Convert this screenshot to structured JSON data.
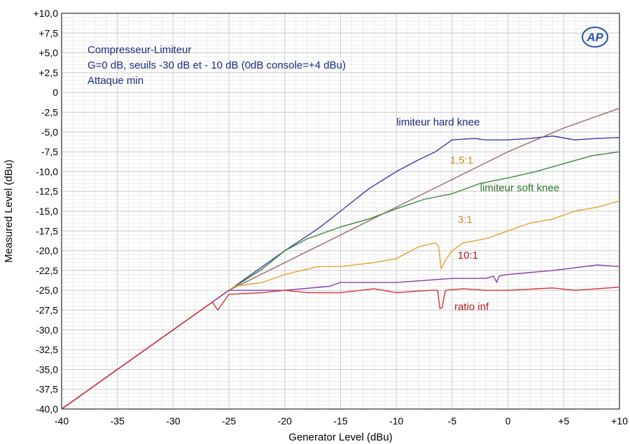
{
  "chart_data": {
    "type": "line",
    "title_lines": [
      "Compresseur-Limiteur",
      "G=0 dB, seuils -30 dB et - 10 dB (0dB console=+4 dBu)",
      "Attaque min"
    ],
    "title_color": "#1a2a7a",
    "xlabel": "Generator Level (dBu)",
    "ylabel": "Measured Level (dBu)",
    "xlim": [
      -40,
      10
    ],
    "ylim": [
      -40,
      10
    ],
    "x_ticks": [
      -40,
      -35,
      -30,
      -25,
      -20,
      -15,
      -10,
      -5,
      0,
      5,
      10
    ],
    "x_tick_labels": [
      "-40",
      "-35",
      "-30",
      "-25",
      "-20",
      "-15",
      "-10",
      "-5",
      "0",
      "+5",
      "+10"
    ],
    "y_ticks": [
      10,
      7.5,
      5,
      2.5,
      0,
      -2.5,
      -5,
      -7.5,
      -10,
      -12.5,
      -15,
      -17.5,
      -20,
      -22.5,
      -25,
      -27.5,
      -30,
      -32.5,
      -35,
      -37.5,
      -40
    ],
    "y_tick_labels": [
      "+10,0",
      "+7,5",
      "+5,0",
      "+2,5",
      "0",
      "-2,5",
      "-5,0",
      "-7,5",
      "-10,0",
      "-12,5",
      "-15,0",
      "-17,5",
      "-20,0",
      "-22,5",
      "-25,0",
      "-27,5",
      "-30,0",
      "-32,5",
      "-35,0",
      "-37,5",
      "-40,0"
    ],
    "x_minor_step": 1,
    "y_minor_step": 0.5,
    "grid": true,
    "logo": "AP",
    "series": [
      {
        "name": "limiteur hard knee",
        "color": "#3a3aaa",
        "label_at": [
          -10,
          -4.2
        ],
        "label_color": "#1a2a7a",
        "points": [
          [
            -40,
            -40
          ],
          [
            -27,
            -27
          ],
          [
            -25,
            -25
          ],
          [
            -20,
            -20
          ],
          [
            -17,
            -17.2
          ],
          [
            -15,
            -15
          ],
          [
            -12.5,
            -12.2
          ],
          [
            -10,
            -10
          ],
          [
            -8,
            -8.5
          ],
          [
            -6.5,
            -7.5
          ],
          [
            -5,
            -6
          ],
          [
            -3,
            -5.8
          ],
          [
            -2,
            -6
          ],
          [
            0,
            -6
          ],
          [
            2,
            -5.8
          ],
          [
            4,
            -5.5
          ],
          [
            6,
            -6
          ],
          [
            8,
            -5.8
          ],
          [
            10,
            -5.7
          ]
        ]
      },
      {
        "name": "1,5:1",
        "color": "#9a6a6a",
        "label_at": [
          -5.2,
          -9
        ],
        "label_color": "#d08a30",
        "points": [
          [
            -40,
            -40
          ],
          [
            -27,
            -27
          ],
          [
            -25,
            -25
          ],
          [
            -20,
            -21.5
          ],
          [
            -15,
            -18
          ],
          [
            -10,
            -14.5
          ],
          [
            -5,
            -11
          ],
          [
            0,
            -7.5
          ],
          [
            5,
            -4.5
          ],
          [
            10,
            -2
          ]
        ]
      },
      {
        "name": "limiteur soft knee",
        "color": "#3a8a3a",
        "label_at": [
          -2.5,
          -12.5
        ],
        "label_color": "#2a7a2a",
        "points": [
          [
            -40,
            -40
          ],
          [
            -27,
            -27
          ],
          [
            -25,
            -25
          ],
          [
            -22,
            -22.3
          ],
          [
            -20,
            -20
          ],
          [
            -18,
            -18.5
          ],
          [
            -15,
            -17
          ],
          [
            -12.5,
            -16
          ],
          [
            -10,
            -14.7
          ],
          [
            -7.5,
            -13.5
          ],
          [
            -5,
            -12.8
          ],
          [
            -2.5,
            -11.5
          ],
          [
            0,
            -10.8
          ],
          [
            2.5,
            -10
          ],
          [
            5,
            -9
          ],
          [
            7.5,
            -8
          ],
          [
            10,
            -7.5
          ]
        ]
      },
      {
        "name": "3:1",
        "color": "#e8a030",
        "label_at": [
          -4.5,
          -16.5
        ],
        "label_color": "#d08a30",
        "points": [
          [
            -40,
            -40
          ],
          [
            -27,
            -27
          ],
          [
            -25,
            -25
          ],
          [
            -24.5,
            -24.5
          ],
          [
            -22,
            -24
          ],
          [
            -20,
            -23
          ],
          [
            -17,
            -22
          ],
          [
            -15,
            -22
          ],
          [
            -12,
            -21.5
          ],
          [
            -10,
            -21
          ],
          [
            -8,
            -19.5
          ],
          [
            -6.5,
            -19
          ],
          [
            -6.2,
            -19.5
          ],
          [
            -6,
            -22.3
          ],
          [
            -5.5,
            -21
          ],
          [
            -5,
            -20
          ],
          [
            -4,
            -19
          ],
          [
            -2,
            -18.5
          ],
          [
            0,
            -17.5
          ],
          [
            2,
            -16.5
          ],
          [
            4,
            -16
          ],
          [
            6,
            -15
          ],
          [
            8,
            -14.5
          ],
          [
            10,
            -13.7
          ]
        ]
      },
      {
        "name": "10:1",
        "color": "#8a3aaa",
        "label_at": [
          -4.5,
          -21
        ],
        "label_color": "#aa2222",
        "points": [
          [
            -40,
            -40
          ],
          [
            -27,
            -27
          ],
          [
            -25,
            -25
          ],
          [
            -20,
            -25
          ],
          [
            -16,
            -24.5
          ],
          [
            -15,
            -24
          ],
          [
            -10,
            -24
          ],
          [
            -5,
            -23.5
          ],
          [
            -2,
            -23.5
          ],
          [
            -1.3,
            -23.2
          ],
          [
            -1,
            -24
          ],
          [
            -0.8,
            -23.2
          ],
          [
            0,
            -23
          ],
          [
            4,
            -22.5
          ],
          [
            8,
            -21.8
          ],
          [
            10,
            -22
          ]
        ]
      },
      {
        "name": "ratio inf",
        "color": "#d83030",
        "label_at": [
          -4.8,
          -27.5
        ],
        "label_color": "#aa2222",
        "points": [
          [
            -40,
            -40
          ],
          [
            -27,
            -27
          ],
          [
            -26.5,
            -26.5
          ],
          [
            -26,
            -27.5
          ],
          [
            -25,
            -25.5
          ],
          [
            -22,
            -25.3
          ],
          [
            -20,
            -25
          ],
          [
            -18,
            -25.3
          ],
          [
            -15,
            -25.3
          ],
          [
            -12,
            -24.8
          ],
          [
            -10,
            -25.3
          ],
          [
            -7,
            -25
          ],
          [
            -6.3,
            -25
          ],
          [
            -6.1,
            -27.3
          ],
          [
            -5.9,
            -27.2
          ],
          [
            -5.6,
            -25
          ],
          [
            -4,
            -24.8
          ],
          [
            -2,
            -25
          ],
          [
            0,
            -25
          ],
          [
            4,
            -24.7
          ],
          [
            6,
            -25
          ],
          [
            8,
            -24.8
          ],
          [
            10,
            -24.6
          ]
        ]
      }
    ]
  }
}
